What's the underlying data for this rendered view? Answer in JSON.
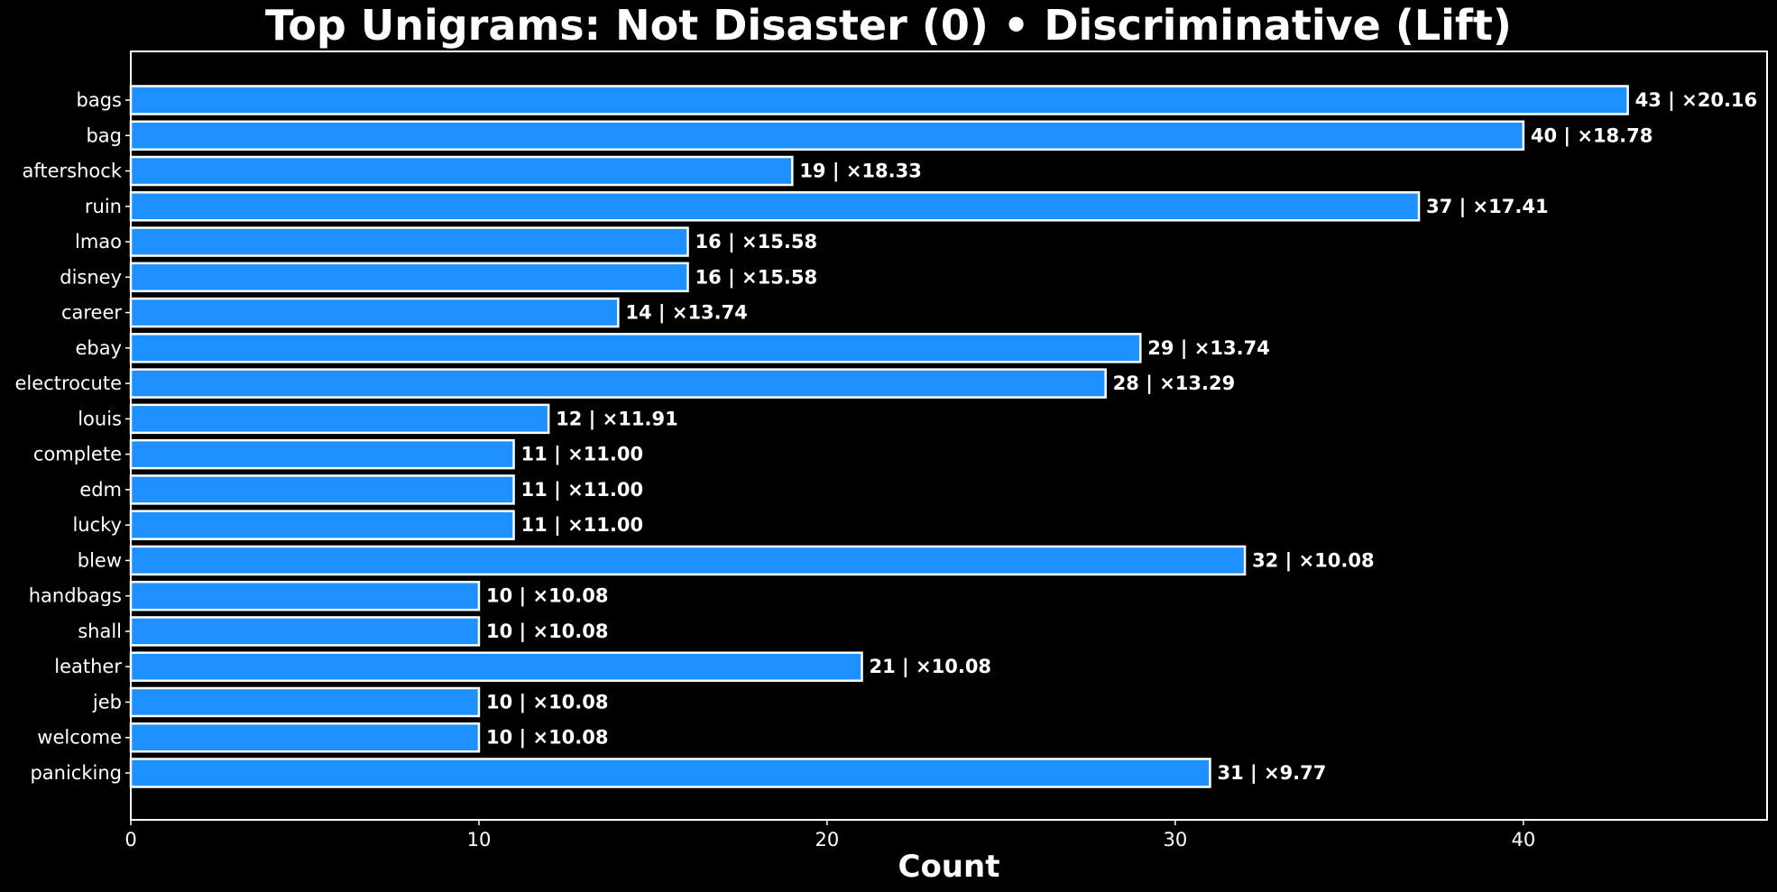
{
  "chart_data": {
    "type": "bar",
    "orientation": "horizontal",
    "title": "Top Unigrams: Not Disaster (0) • Discriminative (Lift)",
    "xlabel": "Count",
    "ylabel": "",
    "xlim": [
      0,
      47
    ],
    "xticks": [
      0,
      10,
      20,
      30,
      40
    ],
    "grid": false,
    "categories": [
      "bags",
      "bag",
      "aftershock",
      "ruin",
      "lmao",
      "disney",
      "career",
      "ebay",
      "electrocute",
      "louis",
      "complete",
      "edm",
      "lucky",
      "blew",
      "handbags",
      "shall",
      "leather",
      "jeb",
      "welcome",
      "panicking"
    ],
    "values": [
      43,
      40,
      19,
      37,
      16,
      16,
      14,
      29,
      28,
      12,
      11,
      11,
      11,
      32,
      10,
      10,
      21,
      10,
      10,
      31
    ],
    "data_labels": [
      "43 | ×20.16",
      "40 | ×18.78",
      "19 | ×18.33",
      "37 | ×17.41",
      "16 | ×15.58",
      "16 | ×15.58",
      "14 | ×13.74",
      "29 | ×13.74",
      "28 | ×13.29",
      "12 | ×11.91",
      "11 | ×11.00",
      "11 | ×11.00",
      "11 | ×11.00",
      "32 | ×10.08",
      "10 | ×10.08",
      "10 | ×10.08",
      "21 | ×10.08",
      "10 | ×10.08",
      "10 | ×10.08",
      "31 | ×9.77"
    ],
    "colors": {
      "background": "#000000",
      "bar_fill": "#1e90ff",
      "bar_edge": "#ffffff",
      "text": "#ffffff",
      "axes": "#ffffff"
    }
  }
}
